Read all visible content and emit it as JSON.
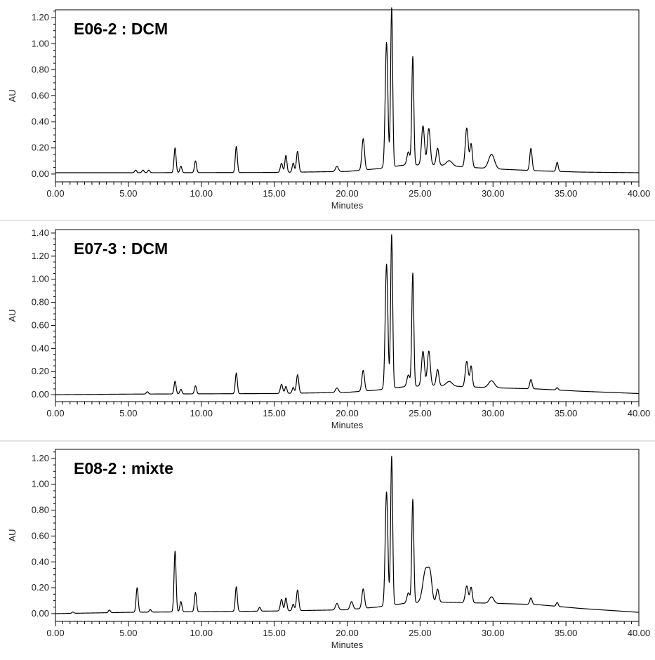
{
  "chart_data": [
    {
      "type": "line",
      "title": "E06-2 : DCM",
      "xlabel": "Minutes",
      "ylabel": "AU",
      "xlim": [
        0,
        40
      ],
      "ylim": [
        -0.06,
        1.26
      ],
      "xticks": [
        "0.00",
        "5.00",
        "10.00",
        "15.00",
        "20.00",
        "25.00",
        "30.00",
        "35.00",
        "40.00"
      ],
      "yticks": [
        "0.00",
        "0.20",
        "0.40",
        "0.60",
        "0.80",
        "1.00",
        "1.20"
      ],
      "grid": false,
      "baseline": [
        [
          0,
          0.01
        ],
        [
          5,
          0.01
        ],
        [
          15,
          0.012
        ],
        [
          20,
          0.02
        ],
        [
          22,
          0.04
        ],
        [
          24,
          0.07
        ],
        [
          26,
          0.07
        ],
        [
          30,
          0.04
        ],
        [
          33,
          0.025
        ],
        [
          36,
          0.015
        ],
        [
          40,
          0.01
        ]
      ],
      "peaks": [
        {
          "t": 5.5,
          "h": 0.02,
          "w": 0.07
        },
        {
          "t": 6.0,
          "h": 0.02,
          "w": 0.07
        },
        {
          "t": 6.4,
          "h": 0.02,
          "w": 0.07
        },
        {
          "t": 8.2,
          "h": 0.19,
          "w": 0.07
        },
        {
          "t": 8.6,
          "h": 0.05,
          "w": 0.07
        },
        {
          "t": 9.6,
          "h": 0.09,
          "w": 0.07
        },
        {
          "t": 12.4,
          "h": 0.2,
          "w": 0.07
        },
        {
          "t": 15.5,
          "h": 0.07,
          "w": 0.08
        },
        {
          "t": 15.8,
          "h": 0.13,
          "w": 0.07
        },
        {
          "t": 16.3,
          "h": 0.07,
          "w": 0.07
        },
        {
          "t": 16.6,
          "h": 0.16,
          "w": 0.08
        },
        {
          "t": 19.3,
          "h": 0.04,
          "w": 0.1
        },
        {
          "t": 21.1,
          "h": 0.24,
          "w": 0.09
        },
        {
          "t": 22.7,
          "h": 0.96,
          "w": 0.09
        },
        {
          "t": 23.05,
          "h": 1.22,
          "w": 0.07
        },
        {
          "t": 24.2,
          "h": 0.1,
          "w": 0.1
        },
        {
          "t": 24.5,
          "h": 0.83,
          "w": 0.07
        },
        {
          "t": 25.2,
          "h": 0.3,
          "w": 0.1
        },
        {
          "t": 25.6,
          "h": 0.28,
          "w": 0.1
        },
        {
          "t": 26.2,
          "h": 0.13,
          "w": 0.09
        },
        {
          "t": 27.0,
          "h": 0.04,
          "w": 0.2
        },
        {
          "t": 28.2,
          "h": 0.3,
          "w": 0.1
        },
        {
          "t": 28.5,
          "h": 0.18,
          "w": 0.08
        },
        {
          "t": 29.9,
          "h": 0.11,
          "w": 0.2
        },
        {
          "t": 32.6,
          "h": 0.17,
          "w": 0.08
        },
        {
          "t": 34.4,
          "h": 0.07,
          "w": 0.07
        }
      ]
    },
    {
      "type": "line",
      "title": "E07-3 : DCM",
      "xlabel": "Minutes",
      "ylabel": "AU",
      "xlim": [
        0,
        40
      ],
      "ylim": [
        -0.06,
        1.43
      ],
      "xticks": [
        "0.00",
        "5.00",
        "10.00",
        "15.00",
        "20.00",
        "25.00",
        "30.00",
        "35.00",
        "40.00"
      ],
      "yticks": [
        "0.00",
        "0.20",
        "0.40",
        "0.60",
        "0.80",
        "1.00",
        "1.20",
        "1.40"
      ],
      "grid": false,
      "baseline": [
        [
          0,
          0.0
        ],
        [
          5,
          0.005
        ],
        [
          15,
          0.01
        ],
        [
          20,
          0.02
        ],
        [
          22,
          0.04
        ],
        [
          24,
          0.07
        ],
        [
          26,
          0.08
        ],
        [
          30,
          0.06
        ],
        [
          33,
          0.05
        ],
        [
          36,
          0.03
        ],
        [
          40,
          0.01
        ]
      ],
      "peaks": [
        {
          "t": 6.3,
          "h": 0.02,
          "w": 0.07
        },
        {
          "t": 8.2,
          "h": 0.11,
          "w": 0.07
        },
        {
          "t": 8.6,
          "h": 0.04,
          "w": 0.07
        },
        {
          "t": 9.6,
          "h": 0.07,
          "w": 0.07
        },
        {
          "t": 12.4,
          "h": 0.18,
          "w": 0.07
        },
        {
          "t": 15.5,
          "h": 0.08,
          "w": 0.08
        },
        {
          "t": 15.8,
          "h": 0.06,
          "w": 0.07
        },
        {
          "t": 16.3,
          "h": 0.05,
          "w": 0.07
        },
        {
          "t": 16.6,
          "h": 0.16,
          "w": 0.08
        },
        {
          "t": 19.3,
          "h": 0.04,
          "w": 0.1
        },
        {
          "t": 21.1,
          "h": 0.18,
          "w": 0.09
        },
        {
          "t": 22.7,
          "h": 1.08,
          "w": 0.09
        },
        {
          "t": 23.05,
          "h": 1.33,
          "w": 0.07
        },
        {
          "t": 24.2,
          "h": 0.1,
          "w": 0.1
        },
        {
          "t": 24.5,
          "h": 0.98,
          "w": 0.07
        },
        {
          "t": 25.2,
          "h": 0.3,
          "w": 0.1
        },
        {
          "t": 25.6,
          "h": 0.3,
          "w": 0.1
        },
        {
          "t": 26.2,
          "h": 0.14,
          "w": 0.09
        },
        {
          "t": 27.0,
          "h": 0.04,
          "w": 0.2
        },
        {
          "t": 28.2,
          "h": 0.22,
          "w": 0.1
        },
        {
          "t": 28.5,
          "h": 0.18,
          "w": 0.08
        },
        {
          "t": 29.9,
          "h": 0.06,
          "w": 0.2
        },
        {
          "t": 32.6,
          "h": 0.08,
          "w": 0.08
        },
        {
          "t": 34.4,
          "h": 0.02,
          "w": 0.07
        }
      ]
    },
    {
      "type": "line",
      "title": "E08-2 : mixte",
      "xlabel": "Minutes",
      "ylabel": "AU",
      "xlim": [
        0,
        40
      ],
      "ylim": [
        -0.06,
        1.27
      ],
      "xticks": [
        "0.00",
        "5.00",
        "10.00",
        "15.00",
        "20.00",
        "25.00",
        "30.00",
        "35.00",
        "40.00"
      ],
      "yticks": [
        "0.00",
        "0.20",
        "0.40",
        "0.60",
        "0.80",
        "1.00",
        "1.20"
      ],
      "grid": false,
      "baseline": [
        [
          0,
          0.0
        ],
        [
          5,
          0.01
        ],
        [
          15,
          0.02
        ],
        [
          20,
          0.03
        ],
        [
          22,
          0.05
        ],
        [
          24,
          0.08
        ],
        [
          26,
          0.09
        ],
        [
          30,
          0.08
        ],
        [
          33,
          0.07
        ],
        [
          36,
          0.04
        ],
        [
          40,
          0.01
        ]
      ],
      "peaks": [
        {
          "t": 1.2,
          "h": 0.01,
          "w": 0.07
        },
        {
          "t": 3.7,
          "h": 0.02,
          "w": 0.07
        },
        {
          "t": 5.6,
          "h": 0.19,
          "w": 0.07
        },
        {
          "t": 6.5,
          "h": 0.02,
          "w": 0.07
        },
        {
          "t": 8.2,
          "h": 0.47,
          "w": 0.07
        },
        {
          "t": 8.6,
          "h": 0.08,
          "w": 0.07
        },
        {
          "t": 9.6,
          "h": 0.15,
          "w": 0.07
        },
        {
          "t": 12.4,
          "h": 0.19,
          "w": 0.07
        },
        {
          "t": 14.0,
          "h": 0.03,
          "w": 0.07
        },
        {
          "t": 15.5,
          "h": 0.09,
          "w": 0.08
        },
        {
          "t": 15.8,
          "h": 0.1,
          "w": 0.07
        },
        {
          "t": 16.3,
          "h": 0.05,
          "w": 0.07
        },
        {
          "t": 16.6,
          "h": 0.16,
          "w": 0.08
        },
        {
          "t": 19.3,
          "h": 0.05,
          "w": 0.1
        },
        {
          "t": 20.3,
          "h": 0.06,
          "w": 0.1
        },
        {
          "t": 21.1,
          "h": 0.15,
          "w": 0.09
        },
        {
          "t": 22.7,
          "h": 0.88,
          "w": 0.09
        },
        {
          "t": 23.05,
          "h": 1.15,
          "w": 0.07
        },
        {
          "t": 24.2,
          "h": 0.08,
          "w": 0.1
        },
        {
          "t": 24.5,
          "h": 0.8,
          "w": 0.07
        },
        {
          "t": 25.4,
          "h": 0.26,
          "w": 0.2
        },
        {
          "t": 25.7,
          "h": 0.16,
          "w": 0.12
        },
        {
          "t": 26.2,
          "h": 0.1,
          "w": 0.09
        },
        {
          "t": 28.2,
          "h": 0.13,
          "w": 0.1
        },
        {
          "t": 28.5,
          "h": 0.12,
          "w": 0.08
        },
        {
          "t": 29.9,
          "h": 0.05,
          "w": 0.15
        },
        {
          "t": 32.6,
          "h": 0.05,
          "w": 0.08
        },
        {
          "t": 34.4,
          "h": 0.03,
          "w": 0.07
        }
      ]
    }
  ]
}
